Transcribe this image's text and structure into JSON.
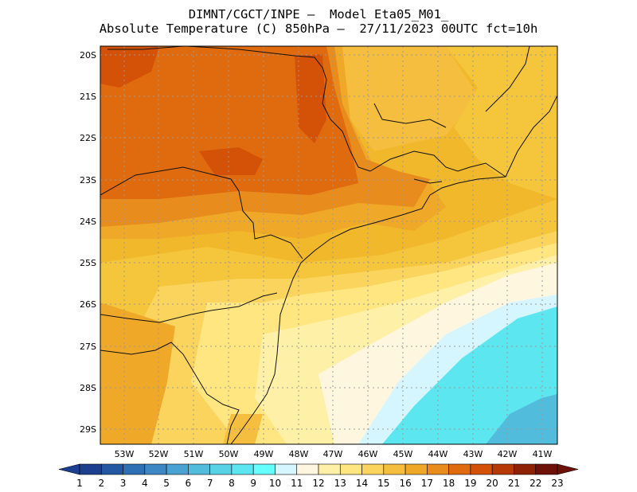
{
  "title": {
    "line1": "DIMNT/CGCT/INPE —  Model Eta05_M01_",
    "line2": "Absolute Temperature (C) 850hPa —  27/11/2023 00UTC fct=10h"
  },
  "map": {
    "lon_labels": [
      "53W",
      "52W",
      "51W",
      "50W",
      "49W",
      "48W",
      "47W",
      "46W",
      "45W",
      "44W",
      "43W",
      "42W",
      "41W"
    ],
    "lat_labels": [
      "20S",
      "21S",
      "22S",
      "23S",
      "24S",
      "25S",
      "26S",
      "27S",
      "28S",
      "29S"
    ]
  },
  "colorbar": {
    "labels": [
      "1",
      "2",
      "3",
      "4",
      "5",
      "6",
      "7",
      "8",
      "9",
      "10",
      "11",
      "12",
      "13",
      "14",
      "15",
      "16",
      "17",
      "18",
      "19",
      "20",
      "21",
      "22",
      "23"
    ],
    "colors": [
      "#1c3f8f",
      "#2458a3",
      "#2f70b5",
      "#3d88c4",
      "#4aa2d2",
      "#52bcdc",
      "#58d2e6",
      "#5ce6f0",
      "#66ffff",
      "#d6f6ff",
      "#fff6e0",
      "#fff0a8",
      "#ffe680",
      "#fbd45e",
      "#f5be3e",
      "#f0a829",
      "#e88c1e",
      "#e06a0e",
      "#d45208",
      "#b63a06",
      "#8e2205",
      "#6e1108"
    ]
  }
}
